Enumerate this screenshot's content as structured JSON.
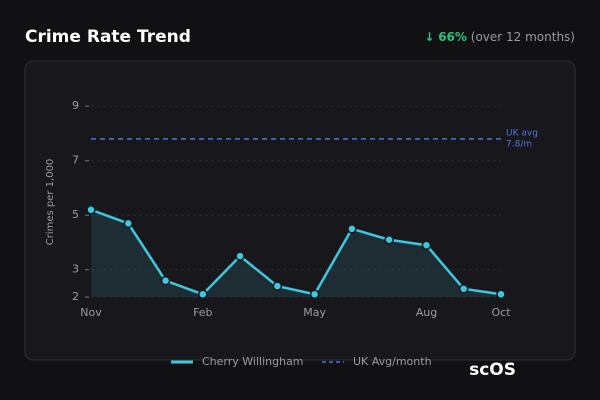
{
  "header": {
    "title": "Crime Rate Trend",
    "change_arrow": "↓",
    "change": "66%",
    "change_period": "(over 12 months)"
  },
  "chart_data": {
    "type": "line",
    "y_label": "Crimes per 1,000",
    "categories": [
      "Nov",
      null,
      null,
      "Feb",
      null,
      null,
      "May",
      null,
      null,
      "Aug",
      null,
      "Oct"
    ],
    "series": [
      {
        "name": "Cherry Willingham",
        "color": "#3ec8e0",
        "values": [
          5.2,
          4.7,
          2.6,
          2.1,
          3.5,
          2.4,
          2.1,
          4.5,
          4.1,
          3.9,
          2.3,
          2.1
        ]
      }
    ],
    "reference": {
      "name": "UK Avg/month",
      "value": 7.8,
      "label": [
        "UK avg",
        "7.8/m"
      ],
      "color": "#4a74e0"
    },
    "ylim": [
      2,
      9.3
    ],
    "yticks": [
      2,
      3,
      5,
      7,
      9
    ],
    "grid": true,
    "legend": "bottom"
  },
  "logo": "scOS"
}
